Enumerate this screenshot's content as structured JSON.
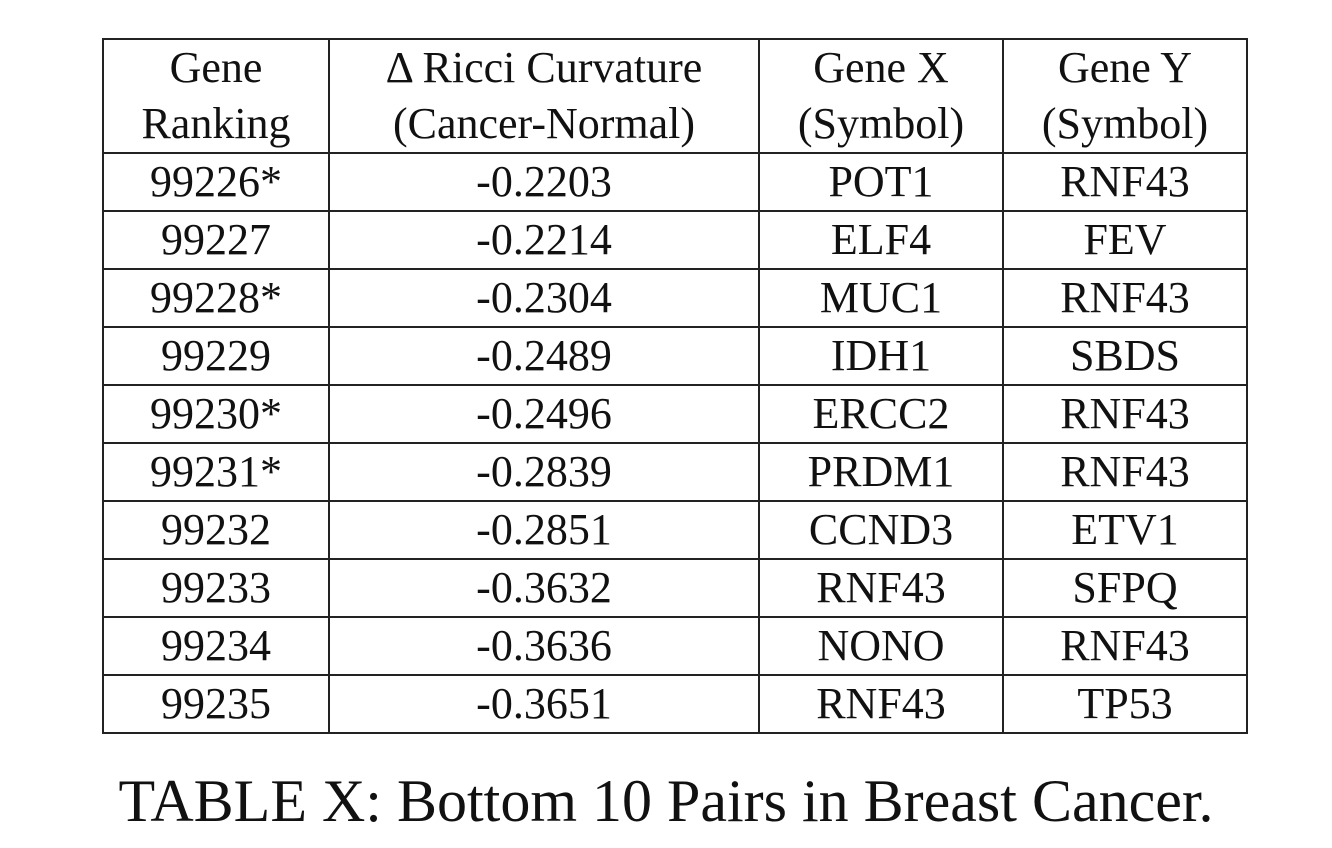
{
  "table": {
    "headers": [
      {
        "line1": "Gene",
        "line2": "Ranking"
      },
      {
        "line1": "Δ Ricci Curvature",
        "line2": "(Cancer-Normal)"
      },
      {
        "line1": "Gene X",
        "line2": "(Symbol)"
      },
      {
        "line1": "Gene Y",
        "line2": "(Symbol)"
      }
    ],
    "rows": [
      [
        "99226*",
        "-0.2203",
        "POT1",
        "RNF43"
      ],
      [
        "99227",
        "-0.2214",
        "ELF4",
        "FEV"
      ],
      [
        "99228*",
        "-0.2304",
        "MUC1",
        "RNF43"
      ],
      [
        "99229",
        "-0.2489",
        "IDH1",
        "SBDS"
      ],
      [
        "99230*",
        "-0.2496",
        "ERCC2",
        "RNF43"
      ],
      [
        "99231*",
        "-0.2839",
        "PRDM1",
        "RNF43"
      ],
      [
        "99232",
        "-0.2851",
        "CCND3",
        "ETV1"
      ],
      [
        "99233",
        "-0.3632",
        "RNF43",
        "SFPQ"
      ],
      [
        "99234",
        "-0.3636",
        "NONO",
        "RNF43"
      ],
      [
        "99235",
        "-0.3651",
        "RNF43",
        "TP53"
      ]
    ]
  },
  "caption": "TABLE X: Bottom 10 Pairs in Breast Cancer."
}
